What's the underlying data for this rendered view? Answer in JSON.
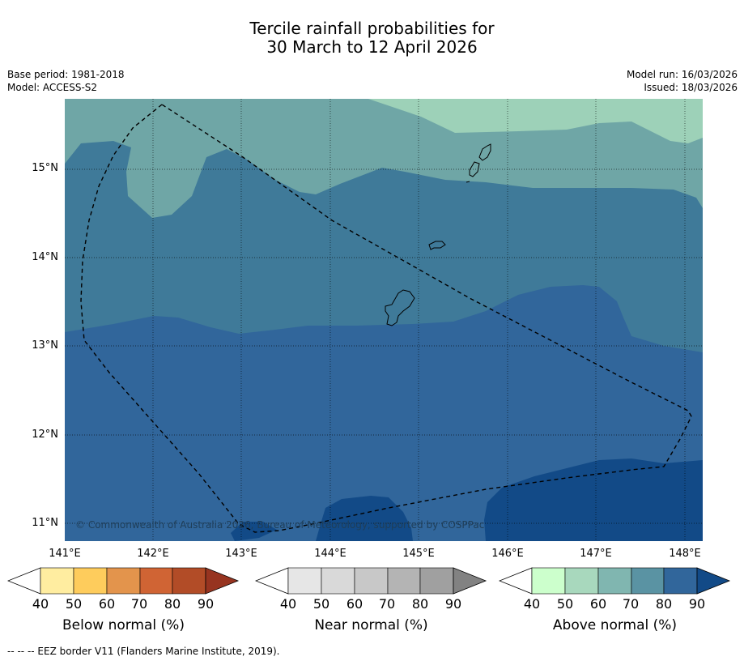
{
  "title": {
    "line1": "Tercile rainfall probabilities for",
    "line2": "30 March to 12 April 2026"
  },
  "meta": {
    "base_period": "Base period: 1981-2018",
    "model": "Model: ACCESS-S2",
    "model_run": "Model run: 16/03/2026",
    "issued": "Issued: 18/03/2026"
  },
  "map": {
    "lat_labels": [
      "15°N",
      "14°N",
      "13°N",
      "12°N",
      "11°N"
    ],
    "lon_labels": [
      "141°E",
      "142°E",
      "143°E",
      "144°E",
      "145°E",
      "146°E",
      "147°E",
      "148°E"
    ],
    "copyright": "© Commonwealth of Australia 2026, Bureau of Meteorology, supported by COSPPac",
    "colors": {
      "above_40_50": "#9dd1b8",
      "above_50_60": "#6fa6a6",
      "above_60_70": "#3f7a99",
      "above_70_80": "#31669b",
      "above_80_90": "#124a87"
    }
  },
  "colorbars": {
    "below": {
      "title": "Below normal (%)",
      "ticks": [
        "40",
        "50",
        "60",
        "70",
        "80",
        "90"
      ],
      "colors": [
        "#ffeda0",
        "#fecc5c",
        "#e3944c",
        "#d06434",
        "#b24c27",
        "#973420"
      ]
    },
    "near": {
      "title": "Near normal (%)",
      "ticks": [
        "40",
        "50",
        "60",
        "70",
        "80",
        "90"
      ],
      "colors": [
        "#e6e6e6",
        "#d9d9d9",
        "#c8c8c8",
        "#b4b4b4",
        "#a0a0a0",
        "#828282"
      ]
    },
    "above": {
      "title": "Above normal (%)",
      "ticks": [
        "40",
        "50",
        "60",
        "70",
        "80",
        "90"
      ],
      "colors": [
        "#ccffcc",
        "#a8d8bd",
        "#80b6b0",
        "#5a93a3",
        "#31669b",
        "#124a87"
      ]
    }
  },
  "footer": "--  --  -- EEZ border V11 (Flanders Marine Institute, 2019)."
}
